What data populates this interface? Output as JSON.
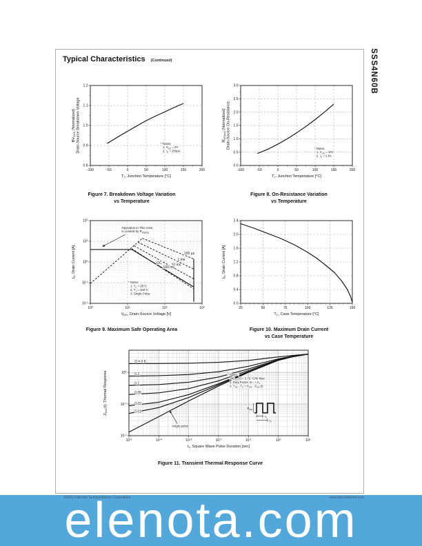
{
  "page": {
    "title": "Typical Characteristics",
    "title_suffix": "(Continued)",
    "part_number": "SSS4N60B",
    "footer_left": "©2002 Fairchild Semiconductor Corporation",
    "footer_right": "www.fairchildsemi.com"
  },
  "banner": {
    "text": "elenota.com",
    "bg": "#54a7db",
    "fg": "#ffffff"
  },
  "figures": {
    "fig7": {
      "caption1": "Figure 7. Breakdown Voltage Variation",
      "caption2": "vs Temperature"
    },
    "fig8": {
      "caption1": "Figure 8. On-Resistance Variation",
      "caption2": "vs Temperature"
    },
    "fig9": {
      "caption1": "Figure 9. Maximum Safe Operating Area",
      "caption2": ""
    },
    "fig10": {
      "caption1": "Figure 10. Maximum Drain Current",
      "caption2": "vs Case Temperature"
    },
    "fig11": {
      "caption1": "Figure 11. Transient Thermal Response Curve",
      "caption2": ""
    }
  },
  "chart_data": [
    {
      "id": "fig7",
      "type": "line",
      "title": "Figure 7. Breakdown Voltage Variation vs Temperature",
      "x": {
        "scale": "linear",
        "min": -100,
        "max": 200,
        "minor": 25,
        "ticks": [
          -100,
          -50,
          0,
          50,
          100,
          150,
          200
        ],
        "labels": [
          "-100",
          "-50",
          "0",
          "50",
          "100",
          "150",
          "200"
        ],
        "grid": [
          -50,
          0,
          50,
          100,
          150
        ],
        "label": "T_{J}, Junction Temperature [°C]"
      },
      "y": {
        "scale": "linear",
        "min": 0.8,
        "max": 1.2,
        "minor": 0.05,
        "ticks": [
          0.8,
          0.9,
          1.0,
          1.1,
          1.2
        ],
        "labels": [
          "0.8",
          "0.9",
          "1.0",
          "1.1",
          "1.2"
        ],
        "grid": [
          0.9,
          1.0,
          1.1
        ],
        "label": [
          "BV_{DSS} (Normalized)",
          "Drain-Source Breakdown Voltage"
        ]
      },
      "series": [
        {
          "name": "breakdown-voltage",
          "dash": false,
          "pts": [
            [
              -55,
              0.91
            ],
            [
              -25,
              0.944
            ],
            [
              0,
              0.971
            ],
            [
              25,
              0.998
            ],
            [
              50,
              1.024
            ],
            [
              75,
              1.047
            ],
            [
              100,
              1.068
            ],
            [
              125,
              1.09
            ],
            [
              150,
              1.11
            ]
          ]
        }
      ],
      "notes": {
        "fx": 0.63,
        "fy": 0.74,
        "lines": [
          "* Notes:",
          "1. V_{GS} = 0V",
          "2. I_{D} = 250μA"
        ]
      }
    },
    {
      "id": "fig8",
      "type": "line",
      "title": "Figure 8. On-Resistance Variation vs Temperature",
      "x": {
        "scale": "linear",
        "min": -100,
        "max": 200,
        "minor": 25,
        "ticks": [
          -100,
          -50,
          0,
          50,
          100,
          150,
          200
        ],
        "labels": [
          "-100",
          "-50",
          "0",
          "50",
          "100",
          "150",
          "200"
        ],
        "grid": [
          -50,
          0,
          50,
          100,
          150
        ],
        "label": "T_{J}, Junction Temperature [°C]"
      },
      "y": {
        "scale": "linear",
        "min": 0.0,
        "max": 3.0,
        "minor": 0.25,
        "ticks": [
          0.0,
          0.5,
          1.0,
          1.5,
          2.0,
          2.5,
          3.0
        ],
        "labels": [
          "0.0",
          "0.5",
          "1.0",
          "1.5",
          "2.0",
          "2.5",
          "3.0"
        ],
        "grid": [
          0.5,
          1.0,
          1.5,
          2.0,
          2.5
        ],
        "label": [
          "R_{DS(on)} (Normalized)",
          "Drain-Source On-Resistance"
        ]
      },
      "series": [
        {
          "name": "on-resistance",
          "dash": false,
          "pts": [
            [
              -55,
              0.45
            ],
            [
              -25,
              0.62
            ],
            [
              0,
              0.8
            ],
            [
              25,
              1.0
            ],
            [
              50,
              1.22
            ],
            [
              75,
              1.46
            ],
            [
              100,
              1.72
            ],
            [
              125,
              2.0
            ],
            [
              150,
              2.3
            ]
          ]
        }
      ],
      "notes": {
        "fx": 0.66,
        "fy": 0.8,
        "lines": [
          "* Notes:",
          "1. V_{GS} = 10V",
          "2. I_{D} = 2.0A"
        ]
      }
    },
    {
      "id": "fig9",
      "type": "line",
      "grid": "logdash",
      "title": "Figure 9. Maximum Safe Operating Area",
      "x": {
        "scale": "log",
        "min": 1,
        "max": 1000,
        "ticks": [
          1,
          10,
          100,
          1000
        ],
        "labels": [
          "10^{0}",
          "10^{1}",
          "10^{2}",
          "10^{3}"
        ],
        "label": "V_{DS}, Drain-Source Voltage [V]"
      },
      "y": {
        "scale": "log",
        "min": 0.01,
        "max": 100,
        "ticks": [
          0.01,
          0.1,
          1,
          10,
          100
        ],
        "labels": [
          "10^{-2}",
          "10^{-1}",
          "10^{0}",
          "10^{1}",
          "10^{2}"
        ],
        "label": [
          "I_{D}, Drain Current [A]"
        ]
      },
      "series": [
        {
          "name": "rdson-limit",
          "dash": true,
          "pts": [
            [
              1,
              0.09
            ],
            [
              25,
              14
            ]
          ]
        },
        {
          "name": "100us",
          "dash": true,
          "pts": [
            [
              25,
              14
            ],
            [
              600,
              1.4
            ]
          ]
        },
        {
          "name": "1ms",
          "dash": true,
          "pts": [
            [
              19,
              9
            ],
            [
              600,
              0.45
            ]
          ]
        },
        {
          "name": "10ms",
          "dash": true,
          "pts": [
            [
              15,
              6
            ],
            [
              600,
              0.15
            ]
          ]
        },
        {
          "name": "100ms",
          "dash": true,
          "pts": [
            [
              13,
              4.4
            ],
            [
              600,
              0.05
            ]
          ]
        },
        {
          "name": "dc",
          "dash": false,
          "pts": [
            [
              1,
              4
            ],
            [
              13,
              4
            ],
            [
              600,
              0.062
            ]
          ]
        },
        {
          "name": "bv-limit",
          "dash": false,
          "pts": [
            [
              600,
              1.4
            ],
            [
              600,
              0.012
            ]
          ]
        }
      ],
      "labels": [
        {
          "x": 330,
          "y": 2.3,
          "t": "100 μs"
        },
        {
          "x": 220,
          "y": 1.15,
          "t": "1 ms"
        },
        {
          "x": 150,
          "y": 0.65,
          "t": "10 ms"
        },
        {
          "x": 90,
          "y": 0.5,
          "t": "100 ms"
        },
        {
          "x": 60,
          "y": 0.8,
          "t": "DC"
        }
      ],
      "annotation": {
        "lines": [
          "Operation in This Area",
          "is Limited by R_{DS(on)}"
        ],
        "fx": 0.28,
        "fy": 0.1,
        "arrow": {
          "fx1": 0.31,
          "fy1": 0.17,
          "x2": 2.1,
          "y2": 5.5
        }
      },
      "notes": {
        "fx": 0.34,
        "fy": 0.76,
        "lines": [
          "* Notes:",
          "1. T_{C} = 25°C",
          "2. T_{J} = 150°C",
          "3. Single Pulse"
        ]
      }
    },
    {
      "id": "fig10",
      "type": "line",
      "title": "Figure 10. Maximum Drain Current vs Case Temperature",
      "x": {
        "scale": "linear",
        "min": 25,
        "max": 150,
        "minor": 5,
        "ticks": [
          25,
          50,
          75,
          100,
          125,
          150
        ],
        "labels": [
          "25",
          "50",
          "75",
          "100",
          "125",
          "150"
        ],
        "grid": [
          50,
          75,
          100,
          125
        ],
        "label": "T_{C}, Case Temperature [°C]"
      },
      "y": {
        "scale": "linear",
        "min": 0.0,
        "max": 2.4,
        "minor": 0.1,
        "ticks": [
          0.0,
          0.4,
          0.8,
          1.2,
          1.6,
          2.0,
          2.4
        ],
        "labels": [
          "0.0",
          "0.4",
          "0.8",
          "1.2",
          "1.6",
          "2.0",
          "2.4"
        ],
        "grid": [
          0.4,
          0.8,
          1.2,
          1.6,
          2.0
        ],
        "label": [
          "I_{D}, Drain Current [A]"
        ]
      },
      "series": [
        {
          "name": "max-drain-current",
          "dash": false,
          "pts": [
            [
              25,
              2.31
            ],
            [
              40,
              2.18
            ],
            [
              55,
              2.03
            ],
            [
              70,
              1.88
            ],
            [
              85,
              1.7
            ],
            [
              100,
              1.48
            ],
            [
              110,
              1.31
            ],
            [
              120,
              1.11
            ],
            [
              130,
              0.89
            ],
            [
              138,
              0.65
            ],
            [
              144,
              0.42
            ],
            [
              148,
              0.2
            ],
            [
              150,
              0.03
            ]
          ]
        }
      ]
    },
    {
      "id": "fig11",
      "type": "line",
      "grid": "dense",
      "title": "Figure 11. Transient Thermal Response Curve",
      "x": {
        "scale": "log",
        "min": 1e-05,
        "max": 10,
        "ticks": [
          1e-05,
          0.0001,
          0.001,
          0.01,
          0.1,
          1,
          10
        ],
        "labels": [
          "10^{-5}",
          "10^{-4}",
          "10^{-3}",
          "10^{-2}",
          "10^{-1}",
          "10^{0}",
          "10^{1}"
        ],
        "label": "t_{1}, Square Wave Pulse Duration [sec]"
      },
      "y": {
        "scale": "log",
        "min": 0.01,
        "max": 5,
        "ticks": [
          0.01,
          0.1,
          1
        ],
        "labels": [
          "10^{-2}",
          "10^{-1}",
          "10^{0}"
        ],
        "label": [
          "Z_{θJC}(t), Thermal Response"
        ]
      },
      "series": [
        {
          "name": "D-0.5",
          "dash": false,
          "pts": [
            [
              1e-05,
              1.887
            ],
            [
              0.0001,
              1.9
            ],
            [
              0.001,
              1.94
            ],
            [
              0.01,
              2.07
            ],
            [
              0.1,
              2.38
            ],
            [
              1,
              3.08
            ],
            [
              3,
              3.43
            ],
            [
              10,
              3.76
            ]
          ]
        },
        {
          "name": "D-0.2",
          "dash": false,
          "pts": [
            [
              1e-05,
              0.762
            ],
            [
              0.0001,
              0.784
            ],
            [
              0.001,
              0.852
            ],
            [
              0.01,
              1.05
            ],
            [
              0.1,
              1.55
            ],
            [
              1,
              2.67
            ],
            [
              3,
              3.23
            ],
            [
              10,
              3.76
            ]
          ]
        },
        {
          "name": "D-0.1",
          "dash": false,
          "pts": [
            [
              1e-05,
              0.388
            ],
            [
              0.0001,
              0.412
            ],
            [
              0.001,
              0.489
            ],
            [
              0.01,
              0.709
            ],
            [
              0.1,
              1.28
            ],
            [
              1,
              2.54
            ],
            [
              3,
              3.17
            ],
            [
              10,
              3.76
            ]
          ]
        },
        {
          "name": "D-0.05",
          "dash": false,
          "pts": [
            [
              1e-05,
              0.2
            ],
            [
              0.0001,
              0.226
            ],
            [
              0.001,
              0.307
            ],
            [
              0.01,
              0.54
            ],
            [
              0.1,
              1.14
            ],
            [
              1,
              2.47
            ],
            [
              3,
              3.14
            ],
            [
              10,
              3.76
            ]
          ]
        },
        {
          "name": "D-0.02",
          "dash": false,
          "pts": [
            [
              1e-05,
              0.088
            ],
            [
              0.0001,
              0.114
            ],
            [
              0.001,
              0.198
            ],
            [
              0.01,
              0.438
            ],
            [
              0.1,
              1.055
            ],
            [
              1,
              2.43
            ],
            [
              3,
              3.12
            ],
            [
              10,
              3.76
            ]
          ]
        },
        {
          "name": "D-0.01",
          "dash": false,
          "pts": [
            [
              1e-05,
              0.0505
            ],
            [
              0.0001,
              0.0772
            ],
            [
              0.001,
              0.161
            ],
            [
              0.01,
              0.404
            ],
            [
              0.1,
              1.03
            ],
            [
              1,
              2.41
            ],
            [
              3,
              3.11
            ],
            [
              10,
              3.76
            ]
          ]
        },
        {
          "name": "single-pulse",
          "dash": false,
          "pts": [
            [
              1e-05,
              0.013
            ],
            [
              0.0001,
              0.04
            ],
            [
              0.001,
              0.125
            ],
            [
              0.01,
              0.37
            ],
            [
              0.1,
              1.0
            ],
            [
              1,
              2.4
            ],
            [
              3,
              3.1
            ],
            [
              10,
              3.76
            ]
          ]
        }
      ],
      "labels": [
        {
          "x": 1.55e-05,
          "y": 2.05,
          "t": "D = 0.5"
        },
        {
          "x": 1.55e-05,
          "y": 0.83,
          "t": "0.2"
        },
        {
          "x": 1.55e-05,
          "y": 0.42,
          "t": "0.1"
        },
        {
          "x": 1.55e-05,
          "y": 0.215,
          "t": "0.05"
        },
        {
          "x": 1.55e-05,
          "y": 0.095,
          "t": "0.02"
        },
        {
          "x": 1.55e-05,
          "y": 0.054,
          "t": "0.01"
        }
      ],
      "annotation": {
        "lines": [
          "single pulse"
        ],
        "fx": 0.24,
        "fy": 0.9,
        "arrow": {
          "fx1": 0.27,
          "fy1": 0.86,
          "x2": 0.00023,
          "y2": 0.062
        }
      },
      "notes": {
        "fx": 0.55,
        "fy": 0.3,
        "lines": [
          "* Notes :",
          "1. Z_{θJC}(t) = 3.76 °C/W Max.",
          "2. Duty Factor, D = t_{1}/t_{2}",
          "3. T_{JM} - T_{C} = P_{DM} · Z_{θJC}(t)"
        ]
      },
      "inset": {
        "fx": 0.7,
        "fy": 0.62,
        "p": "P_{DM}",
        "t1": "t_{1}",
        "t2": "t_{2}"
      }
    }
  ]
}
